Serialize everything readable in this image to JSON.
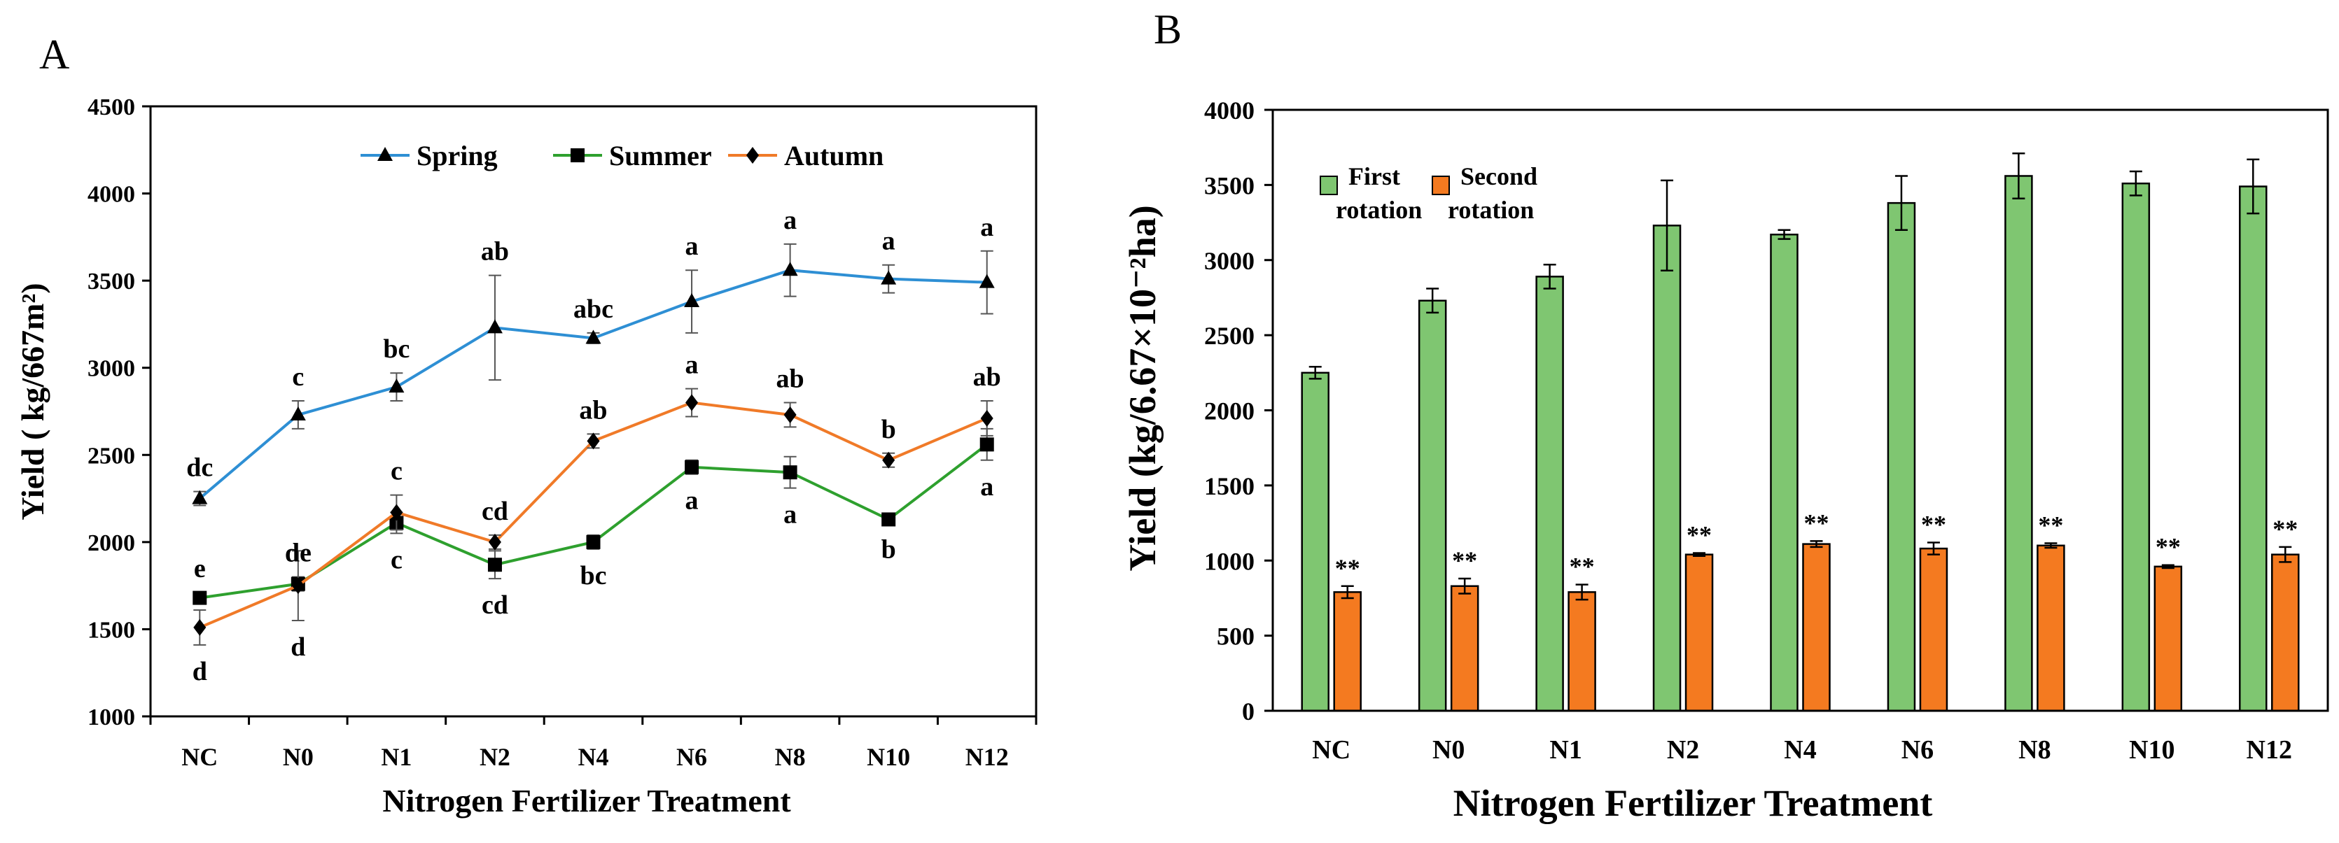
{
  "chart_data": [
    {
      "panel_label": "A",
      "type": "line",
      "title": "",
      "xlabel": "Nitrogen Fertilizer Treatment",
      "ylabel": "Yield ( kg/667m²)",
      "ylim": [
        1000,
        4500
      ],
      "yticks": [
        1000,
        1500,
        2000,
        2500,
        3000,
        3500,
        4000,
        4500
      ],
      "legend_position": "top-center",
      "categories": [
        "NC",
        "N0",
        "N1",
        "N2",
        "N4",
        "N6",
        "N8",
        "N10",
        "N12"
      ],
      "series": [
        {
          "name": "Spring",
          "color": "#2E8FD4",
          "marker": "triangle",
          "values": [
            2250,
            2730,
            2890,
            3230,
            3170,
            3380,
            3560,
            3510,
            3490
          ],
          "errors": [
            40,
            80,
            80,
            300,
            30,
            180,
            150,
            80,
            180
          ],
          "letters": [
            "dc",
            "c",
            "bc",
            "ab",
            "abc",
            "a",
            "a",
            "a",
            "a"
          ],
          "letter_side": "above"
        },
        {
          "name": "Summer",
          "color": "#2EA02E",
          "marker": "square",
          "values": [
            1680,
            1760,
            2110,
            1870,
            2000,
            2430,
            2400,
            2130,
            2560
          ],
          "errors": [
            30,
            40,
            60,
            80,
            40,
            40,
            90,
            20,
            90
          ],
          "letters": [
            "e",
            "de",
            "c",
            "cd",
            "bc",
            "a",
            "a",
            "b",
            "a"
          ],
          "letter_side": "summer"
        },
        {
          "name": "Autumn",
          "color": "#F07A28",
          "marker": "diamond",
          "values": [
            1510,
            1750,
            2170,
            2000,
            2580,
            2800,
            2730,
            2470,
            2710
          ],
          "errors": [
            100,
            200,
            100,
            40,
            40,
            80,
            70,
            40,
            100
          ],
          "letters": [
            "d",
            "d",
            "c",
            "cd",
            "ab",
            "a",
            "ab",
            "b",
            "ab"
          ],
          "letter_side": "autumn"
        }
      ]
    },
    {
      "panel_label": "B",
      "type": "bar",
      "title": "",
      "xlabel": "Nitrogen Fertilizer Treatment",
      "ylabel": "Yield  (kg/6.67×10⁻²ha)",
      "ylim": [
        0,
        4000
      ],
      "yticks": [
        0,
        500,
        1000,
        1500,
        2000,
        2500,
        3000,
        3500,
        4000
      ],
      "legend_position": "top-left",
      "categories": [
        "NC",
        "N0",
        "N1",
        "N2",
        "N4",
        "N6",
        "N8",
        "N10",
        "N12"
      ],
      "series": [
        {
          "name": "First rotation",
          "name_lines": [
            "First",
            "rotation"
          ],
          "color": "#7FC671",
          "values": [
            2250,
            2730,
            2890,
            3230,
            3170,
            3380,
            3560,
            3510,
            3490
          ],
          "errors": [
            40,
            80,
            80,
            300,
            30,
            180,
            150,
            80,
            180
          ]
        },
        {
          "name": "Second rotation",
          "name_lines": [
            "Second",
            "rotation"
          ],
          "color": "#F47A20",
          "values": [
            790,
            830,
            790,
            1040,
            1110,
            1080,
            1100,
            960,
            1040
          ],
          "errors": [
            40,
            50,
            50,
            10,
            20,
            40,
            15,
            10,
            50
          ],
          "annotations": [
            "**",
            "**",
            "**",
            "**",
            "**",
            "**",
            "**",
            "**",
            "**"
          ]
        }
      ]
    }
  ]
}
